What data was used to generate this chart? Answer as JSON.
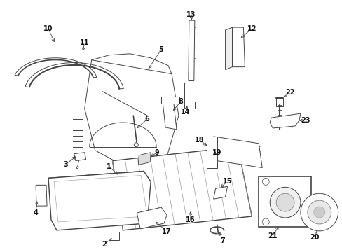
{
  "bg_color": "#ffffff",
  "fig_width": 4.89,
  "fig_height": 3.6,
  "dpi": 100,
  "line_color": "#444444",
  "text_color": "#111111",
  "font_size": 7.0
}
